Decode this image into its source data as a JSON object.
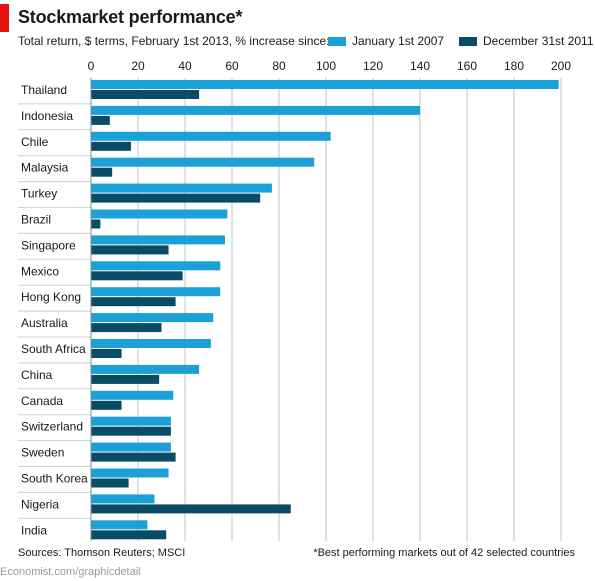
{
  "title": "Stockmarket performance*",
  "subtitle": "Total return, $ terms, February 1st 2013, % increase since:",
  "source": "Sources: Thomson Reuters; MSCI",
  "note": "*Best performing markets out of 42 selected countries",
  "credit": "Economist.com/graphicdetail",
  "colors": {
    "brand_red": "#e3120b",
    "series_1": "#1ba1d8",
    "series_2": "#0a4b66",
    "grid": "#b9c6cc",
    "tick_text": "#1a1a1a"
  },
  "chart_data": {
    "type": "bar",
    "orientation": "horizontal",
    "xlim": [
      0,
      200
    ],
    "x_ticks": [
      "0",
      "20",
      "40",
      "60",
      "80",
      "100",
      "120",
      "140",
      "160",
      "180",
      "200"
    ],
    "x_tick_values": [
      0,
      20,
      40,
      60,
      80,
      100,
      120,
      140,
      160,
      180,
      200
    ],
    "grid": true,
    "legend_position": "top-right",
    "categories": [
      "Thailand",
      "Indonesia",
      "Chile",
      "Malaysia",
      "Turkey",
      "Brazil",
      "Singapore",
      "Mexico",
      "Hong Kong",
      "Australia",
      "South Africa",
      "China",
      "Canada",
      "Switzerland",
      "Sweden",
      "South Korea",
      "Nigeria",
      "India"
    ],
    "series": [
      {
        "name": "January 1st 2007",
        "values": [
          199,
          140,
          102,
          95,
          77,
          58,
          57,
          55,
          55,
          52,
          51,
          46,
          35,
          34,
          34,
          33,
          27,
          24
        ]
      },
      {
        "name": "December 31st 2011",
        "values": [
          46,
          8,
          17,
          9,
          72,
          4,
          33,
          39,
          36,
          30,
          13,
          29,
          13,
          34,
          36,
          16,
          85,
          32
        ]
      }
    ]
  }
}
